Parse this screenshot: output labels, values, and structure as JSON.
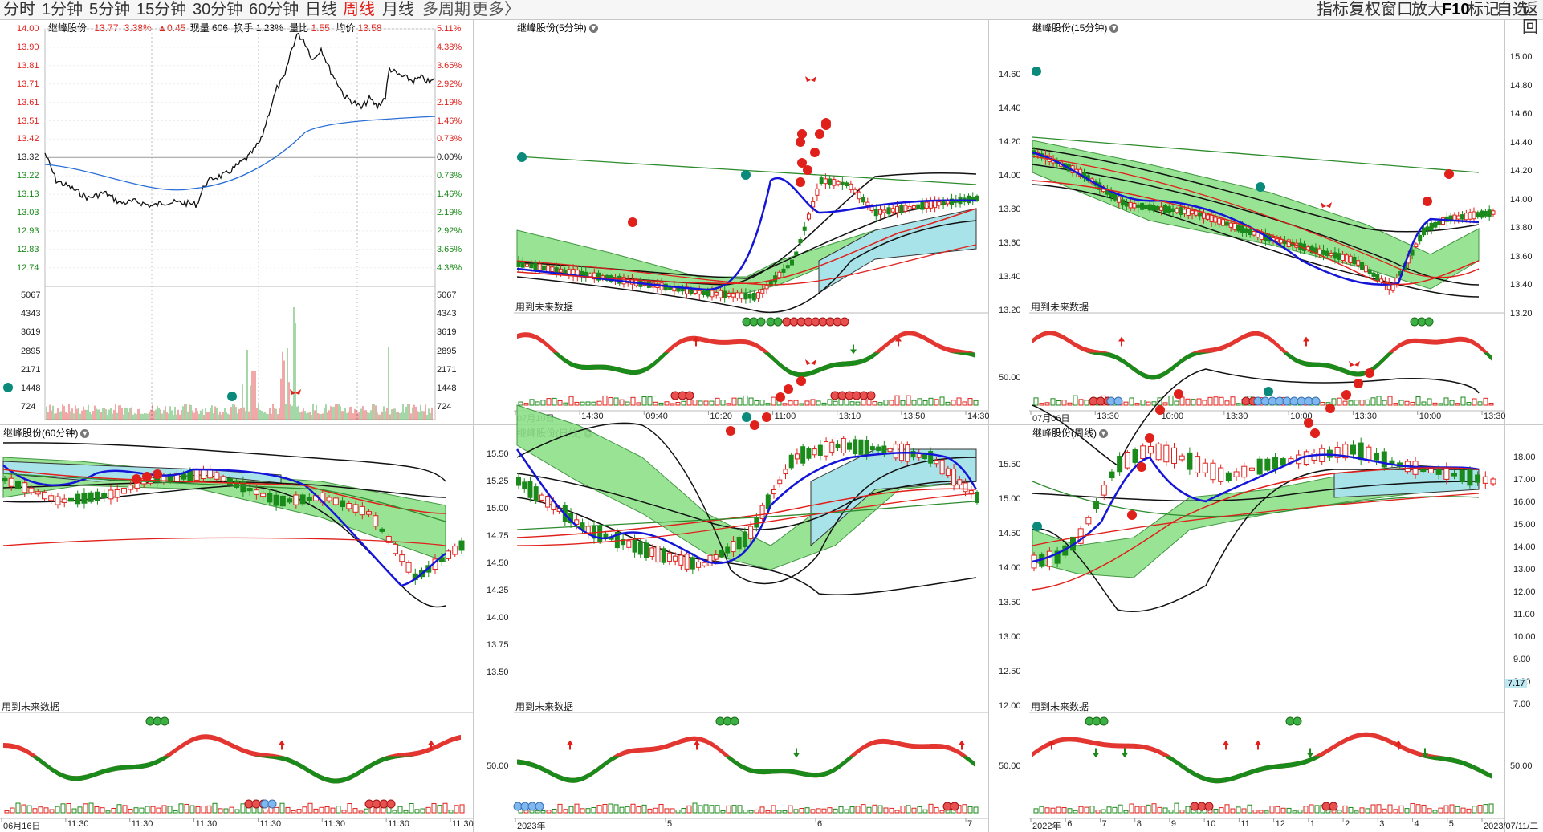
{
  "toolbar": {
    "periods": [
      "分时",
      "1分钟",
      "5分钟",
      "15分钟",
      "30分钟",
      "60分钟",
      "日线",
      "周线",
      "月线",
      "多周期",
      "更多"
    ],
    "active_period": "周线",
    "more_arrow": "〉",
    "right_tools": [
      "指标",
      "复权",
      "窗口",
      "放大",
      "F10",
      "标记",
      "自选",
      "返回"
    ]
  },
  "colors": {
    "up": "#e0201b",
    "down": "#1a8a1a",
    "avg_line": "#2a6fd6",
    "band_green": "#8ee08a",
    "band_cyan": "#a9e3ea",
    "ma_blue": "#1515d9"
  },
  "timeshare": {
    "title": "继峰股份",
    "price": "13.77",
    "pct": "3.38%",
    "change": "▲0.45",
    "volume_label": "现量",
    "volume": "606",
    "turnover_label": "换手",
    "turnover": "1.23%",
    "ratio_label": "量比",
    "ratio": "1.55",
    "avg_label": "均价",
    "avg": "13.58",
    "price_ticks": [
      "14.00",
      "13.90",
      "13.81",
      "13.71",
      "13.61",
      "13.51",
      "13.42",
      "13.32",
      "13.22",
      "13.13",
      "13.03",
      "12.93",
      "12.83",
      "12.74"
    ],
    "pct_ticks": [
      "5.11%",
      "4.38%",
      "3.65%",
      "2.92%",
      "2.19%",
      "1.46%",
      "0.73%",
      "0.00%",
      "0.73%",
      "1.46%",
      "2.19%",
      "2.92%",
      "3.65%",
      "4.38%"
    ],
    "volume_ticks": [
      "5067",
      "4343",
      "3619",
      "2895",
      "2171",
      "1448",
      "724"
    ]
  },
  "panels": [
    {
      "id": "5min",
      "title": "继峰股份(5分钟)",
      "future_label": "用到未来数据",
      "x_ticks": [
        "07月10日",
        "14:30",
        "09:40",
        "10:20",
        "11:00",
        "13:10",
        "13:50",
        "14:30"
      ],
      "y_ticks": []
    },
    {
      "id": "15min",
      "title": "继峰股份(15分钟)",
      "future_label": "用到未来数据",
      "x_ticks": [
        "07月06日",
        "13:30",
        "10:00",
        "13:30",
        "10:00",
        "13:30",
        "10:00",
        "13:30"
      ],
      "y_ticks": [
        "14.60",
        "14.40",
        "14.20",
        "14.00",
        "13.80",
        "13.60",
        "13.40",
        "13.20"
      ],
      "osc_tick": "50.00",
      "right_ticks": [
        "15.00",
        "14.80",
        "14.60",
        "14.40",
        "14.20",
        "14.00",
        "13.80",
        "13.60",
        "13.40",
        "13.20"
      ]
    },
    {
      "id": "60min",
      "title": "继峰股份(60分钟)",
      "future_label": "用到未来数据",
      "x_ticks": [
        "06月16日",
        "11:30",
        "11:30",
        "11:30",
        "11:30",
        "11:30",
        "11:30",
        "11:30"
      ],
      "y_ticks": []
    },
    {
      "id": "day",
      "title": "继峰股份(日线)",
      "future_label": "用到未来数据",
      "x_ticks": [
        "2023年",
        "5",
        "6",
        "7"
      ],
      "y_ticks": [
        "15.50",
        "15.25",
        "15.00",
        "14.75",
        "14.50",
        "14.25",
        "14.00",
        "13.75",
        "13.50"
      ],
      "osc_tick": "50.00"
    },
    {
      "id": "week",
      "title": "继峰股份(周线)",
      "future_label": "用到未来数据",
      "x_ticks": [
        "2022年",
        "6",
        "7",
        "8",
        "9",
        "10",
        "11",
        "12",
        "1",
        "2",
        "3",
        "4",
        "5",
        "2023/07/11/二"
      ],
      "y_ticks": [
        "15.50",
        "15.00",
        "14.50",
        "14.00",
        "13.50",
        "13.00",
        "12.50",
        "12.00"
      ],
      "osc_tick": "50.00",
      "right_ticks": [
        "18.00",
        "17.00",
        "16.00",
        "15.00",
        "14.00",
        "13.00",
        "12.00",
        "11.00",
        "10.00",
        "9.00",
        "8.00",
        "7.00"
      ],
      "side_badge": "7.17",
      "osc_right_tick": "50.00"
    }
  ]
}
